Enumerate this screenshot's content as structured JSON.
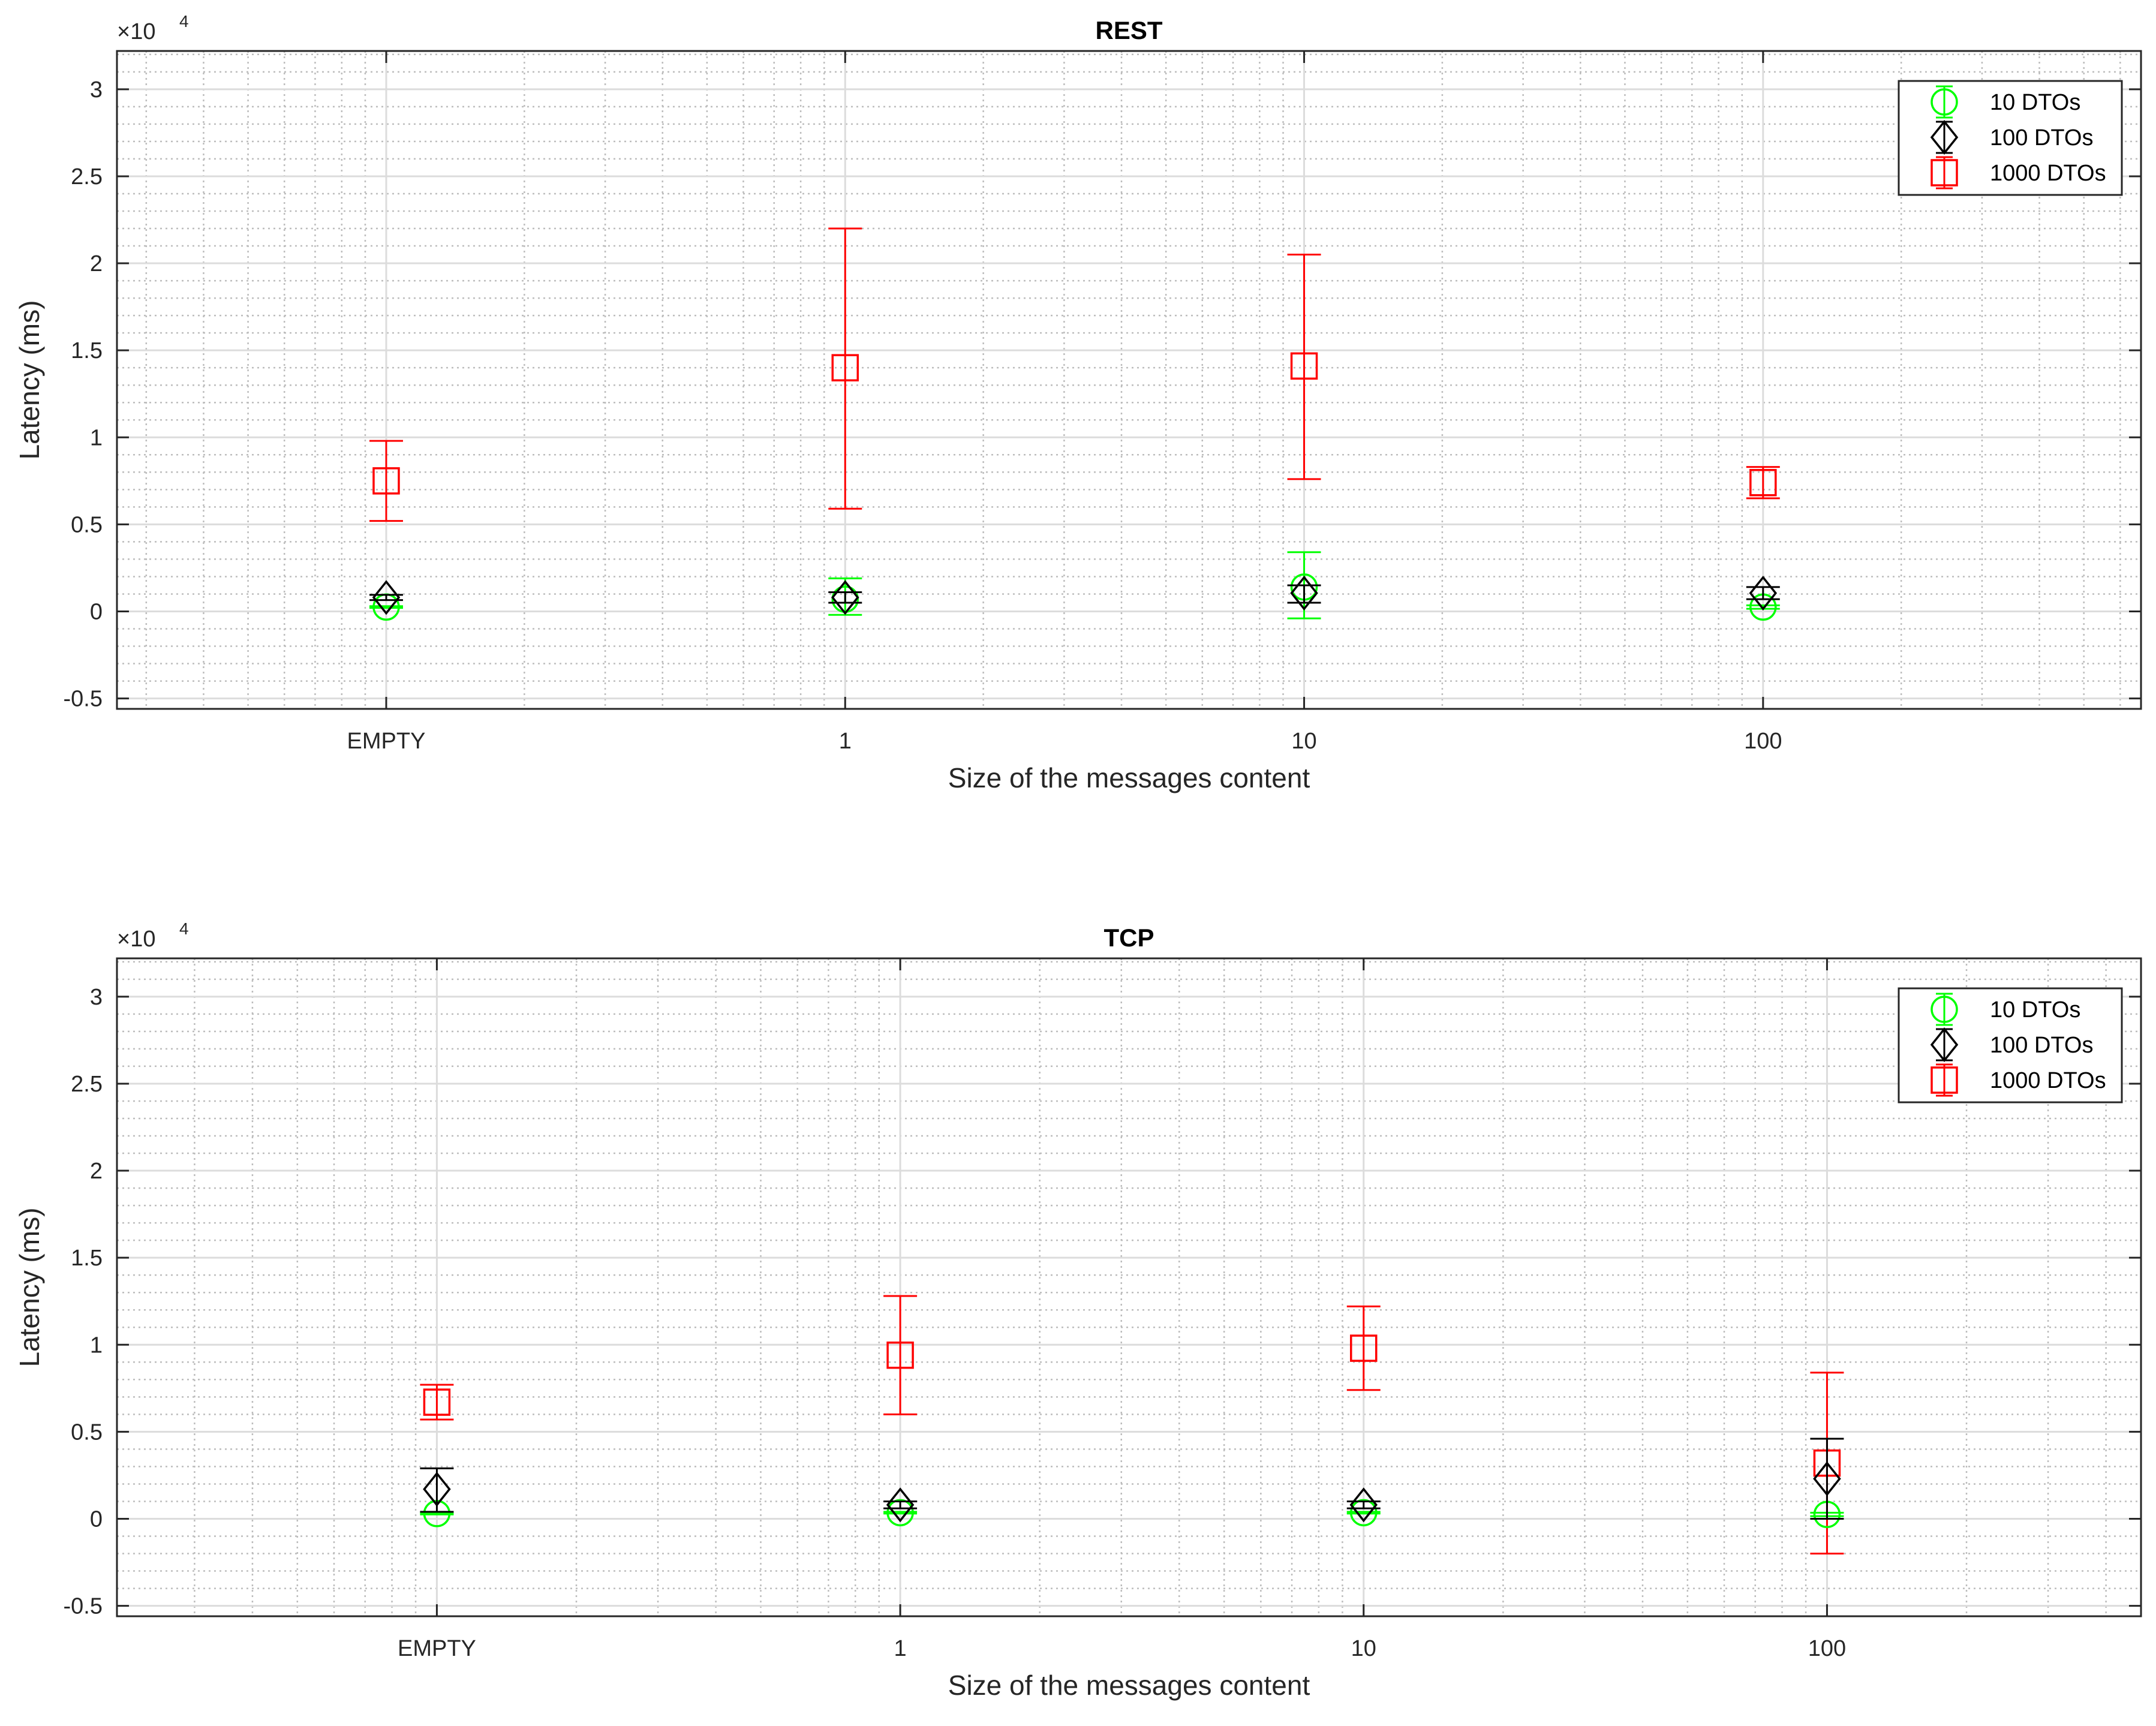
{
  "chart_data": [
    {
      "type": "scatter",
      "title": "REST",
      "xlabel": "Size of the messages content",
      "ylabel": "Latency (ms)",
      "y_exponent_label": "×10",
      "y_exponent_power": "4",
      "x_scale": "log",
      "x_tick_values": [
        0.1,
        1,
        10,
        100
      ],
      "x_tick_labels": [
        "EMPTY",
        "1",
        "10",
        "100"
      ],
      "xlim": [
        0.0259,
        666
      ],
      "ylim": [
        -5600,
        32200
      ],
      "y_ticks": [
        -5000,
        0,
        5000,
        10000,
        15000,
        20000,
        25000,
        30000
      ],
      "y_tick_labels": [
        "-0.5",
        "0",
        "0.5",
        "1",
        "1.5",
        "2",
        "2.5",
        "3"
      ],
      "grid": "major and minor",
      "legend_position": "top-right",
      "series": [
        {
          "name": "10 DTOs",
          "color": "#00ff00",
          "marker": "circle",
          "x": [
            0.1,
            1,
            10,
            100
          ],
          "y": [
            250,
            700,
            1400,
            250
          ],
          "lower": [
            200,
            -200,
            -400,
            150
          ],
          "upper": [
            300,
            1900,
            3400,
            350
          ]
        },
        {
          "name": "100 DTOs",
          "color": "#000000",
          "marker": "diamond",
          "x": [
            0.1,
            1,
            10,
            100
          ],
          "y": [
            800,
            800,
            1050,
            1050
          ],
          "lower": [
            650,
            500,
            500,
            700
          ],
          "upper": [
            950,
            1100,
            1500,
            1400
          ]
        },
        {
          "name": "1000 DTOs",
          "color": "#ff0000",
          "marker": "square",
          "x": [
            0.1,
            1,
            10,
            100
          ],
          "y": [
            7500,
            14000,
            14100,
            7400
          ],
          "lower": [
            5200,
            5900,
            7600,
            6500
          ],
          "upper": [
            9800,
            22000,
            20500,
            8300
          ]
        }
      ]
    },
    {
      "type": "scatter",
      "title": "TCP",
      "xlabel": "Size of the messages content",
      "ylabel": "Latency (ms)",
      "y_exponent_label": "×10",
      "y_exponent_power": "4",
      "x_scale": "log",
      "x_tick_values": [
        0.1,
        1,
        10,
        100
      ],
      "x_tick_labels": [
        "EMPTY",
        "1",
        "10",
        "100"
      ],
      "xlim": [
        0.0204,
        476
      ],
      "ylim": [
        -5600,
        32200
      ],
      "y_ticks": [
        -5000,
        0,
        5000,
        10000,
        15000,
        20000,
        25000,
        30000
      ],
      "y_tick_labels": [
        "-0.5",
        "0",
        "0.5",
        "1",
        "1.5",
        "2",
        "2.5",
        "3"
      ],
      "grid": "major and minor",
      "legend_position": "top-right",
      "series": [
        {
          "name": "10 DTOs",
          "color": "#00ff00",
          "marker": "circle",
          "x": [
            0.1,
            1,
            10,
            100
          ],
          "y": [
            300,
            350,
            350,
            250
          ],
          "lower": [
            250,
            300,
            300,
            150
          ],
          "upper": [
            350,
            400,
            400,
            350
          ]
        },
        {
          "name": "100 DTOs",
          "color": "#000000",
          "marker": "diamond",
          "x": [
            0.1,
            1,
            10,
            100
          ],
          "y": [
            1700,
            800,
            800,
            2300
          ],
          "lower": [
            400,
            600,
            600,
            0
          ],
          "upper": [
            2900,
            1000,
            1000,
            4600
          ]
        },
        {
          "name": "1000 DTOs",
          "color": "#ff0000",
          "marker": "square",
          "x": [
            0.1,
            1,
            10,
            100
          ],
          "y": [
            6700,
            9400,
            9800,
            3200
          ],
          "lower": [
            5700,
            6000,
            7400,
            -2000
          ],
          "upper": [
            7700,
            12800,
            12200,
            8400
          ]
        }
      ]
    }
  ]
}
